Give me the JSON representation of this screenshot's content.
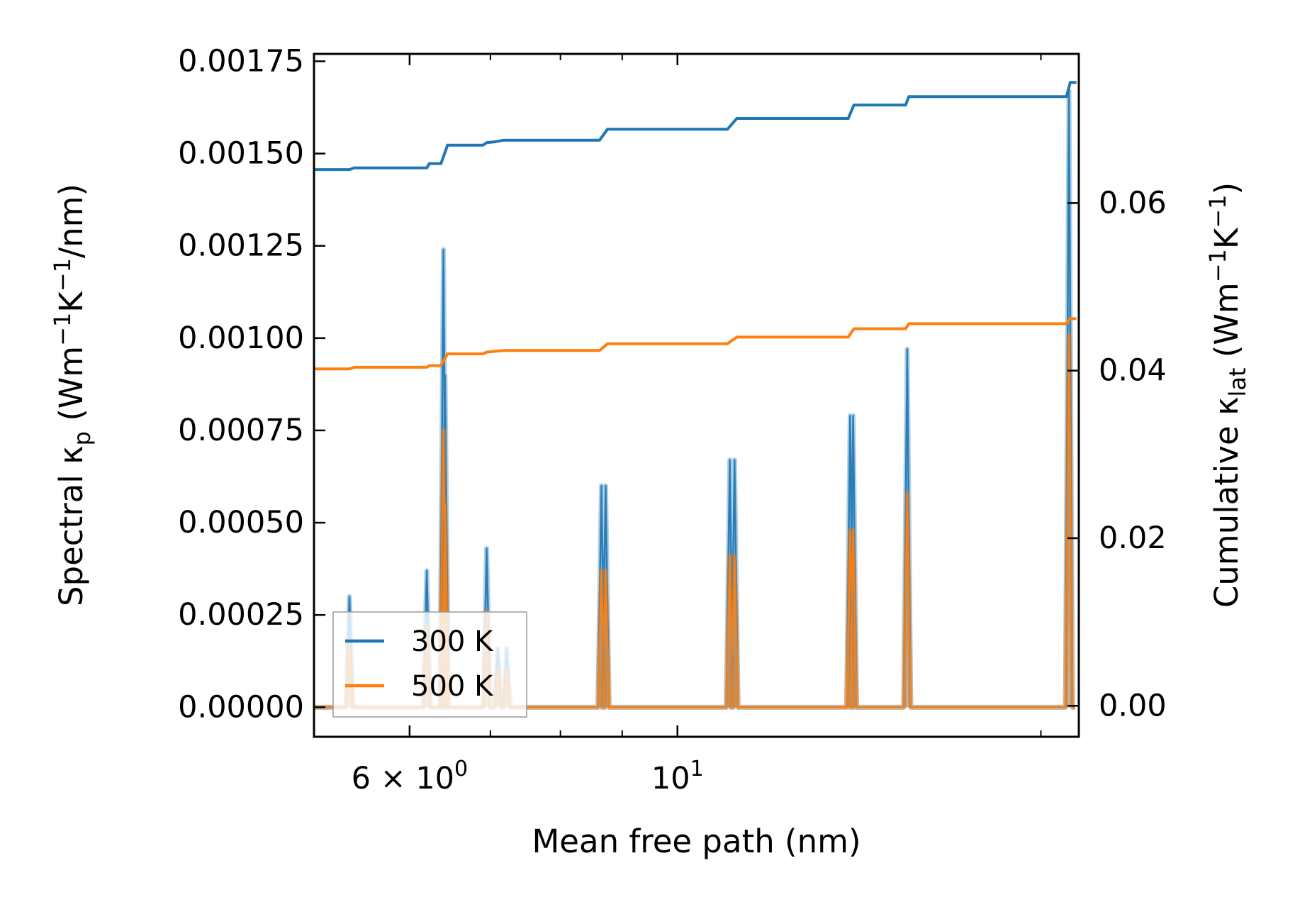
{
  "chart_data": {
    "type": "line",
    "xscale": "log",
    "xlabel": "Mean free path (nm)",
    "xlim": [
      5.0,
      21.5
    ],
    "x_ticks": [
      {
        "value": 6,
        "base": "6",
        "exp": "0",
        "mult": true
      },
      {
        "value": 10,
        "base": "10",
        "exp": "1",
        "mult": false
      }
    ],
    "x_minor_ticks": [
      5,
      7,
      8,
      9,
      20
    ],
    "left_axis": {
      "label_pre": "Spectral κ",
      "label_sub": "p",
      "label_post": " (Wm",
      "label_sup1": "−1",
      "label_mid": "K",
      "label_sup2": "−1",
      "label_end": "/nm)",
      "ylim": [
        -8e-05,
        0.00177
      ],
      "ticks": [
        0.0,
        0.00025,
        0.0005,
        0.00075,
        0.001,
        0.00125,
        0.0015,
        0.00175
      ],
      "tick_labels": [
        "0.00000",
        "0.00025",
        "0.00050",
        "0.00075",
        "0.00100",
        "0.00125",
        "0.00150",
        "0.00175"
      ]
    },
    "right_axis": {
      "label_pre": "Cumulative κ",
      "label_sub": "lat",
      "label_post": " (Wm",
      "label_sup1": "−1",
      "label_mid": "K",
      "label_sup2": "−1",
      "label_end": ")",
      "ylim": [
        -0.0037,
        0.0778
      ],
      "ticks": [
        0.0,
        0.02,
        0.04,
        0.06
      ],
      "tick_labels": [
        "0.00",
        "0.02",
        "0.04",
        "0.06"
      ]
    },
    "series": [
      {
        "name": "300 K",
        "color": "#1f77b4",
        "spectral_peaks": [
          [
            5.35,
            0.0003
          ],
          [
            6.2,
            0.00037
          ],
          [
            6.4,
            0.00124
          ],
          [
            6.42,
            0.0009
          ],
          [
            6.95,
            0.00043
          ],
          [
            7.1,
            0.00016
          ],
          [
            7.22,
            0.00016
          ],
          [
            8.65,
            0.0006
          ],
          [
            8.72,
            0.0006
          ],
          [
            11.05,
            0.00067
          ],
          [
            11.15,
            0.00067
          ],
          [
            13.9,
            0.00079
          ],
          [
            13.98,
            0.00079
          ],
          [
            15.5,
            0.00097
          ],
          [
            21.1,
            0.00167
          ]
        ],
        "cumulative": [
          [
            5.0,
            0.064
          ],
          [
            5.35,
            0.064
          ],
          [
            5.4,
            0.0642
          ],
          [
            6.2,
            0.0642
          ],
          [
            6.23,
            0.0647
          ],
          [
            6.37,
            0.0647
          ],
          [
            6.45,
            0.0669
          ],
          [
            6.9,
            0.0669
          ],
          [
            6.95,
            0.0672
          ],
          [
            7.05,
            0.0673
          ],
          [
            7.18,
            0.0675
          ],
          [
            8.62,
            0.0675
          ],
          [
            8.75,
            0.0688
          ],
          [
            11.0,
            0.0688
          ],
          [
            11.2,
            0.0701
          ],
          [
            13.85,
            0.0701
          ],
          [
            14.0,
            0.0717
          ],
          [
            15.45,
            0.0717
          ],
          [
            15.55,
            0.0727
          ],
          [
            21.0,
            0.0727
          ],
          [
            21.15,
            0.0744
          ],
          [
            21.4,
            0.0744
          ]
        ]
      },
      {
        "name": "500 K",
        "color": "#ff7f0e",
        "spectral_peaks": [
          [
            5.35,
            0.00018
          ],
          [
            6.2,
            0.00022
          ],
          [
            6.4,
            0.00075
          ],
          [
            6.42,
            0.00055
          ],
          [
            6.95,
            0.00026
          ],
          [
            7.1,
            0.0001
          ],
          [
            7.22,
            0.0001
          ],
          [
            8.65,
            0.00037
          ],
          [
            8.72,
            0.00037
          ],
          [
            11.05,
            0.00041
          ],
          [
            11.15,
            0.00041
          ],
          [
            13.9,
            0.00048
          ],
          [
            13.98,
            0.00048
          ],
          [
            15.5,
            0.00058
          ],
          [
            21.1,
            0.00101
          ]
        ],
        "cumulative": [
          [
            5.0,
            0.0402
          ],
          [
            5.35,
            0.0402
          ],
          [
            5.4,
            0.0404
          ],
          [
            6.2,
            0.0404
          ],
          [
            6.23,
            0.0406
          ],
          [
            6.37,
            0.0406
          ],
          [
            6.45,
            0.042
          ],
          [
            6.9,
            0.042
          ],
          [
            6.95,
            0.0422
          ],
          [
            7.05,
            0.0423
          ],
          [
            7.18,
            0.0424
          ],
          [
            8.62,
            0.0424
          ],
          [
            8.75,
            0.0432
          ],
          [
            11.0,
            0.0432
          ],
          [
            11.2,
            0.044
          ],
          [
            13.85,
            0.044
          ],
          [
            14.0,
            0.045
          ],
          [
            15.45,
            0.045
          ],
          [
            15.55,
            0.0456
          ],
          [
            21.0,
            0.0456
          ],
          [
            21.15,
            0.0462
          ],
          [
            21.4,
            0.0462
          ]
        ]
      }
    ],
    "legend": {
      "placement": "lower-left",
      "entries": [
        "300 K",
        "500 K"
      ]
    }
  }
}
